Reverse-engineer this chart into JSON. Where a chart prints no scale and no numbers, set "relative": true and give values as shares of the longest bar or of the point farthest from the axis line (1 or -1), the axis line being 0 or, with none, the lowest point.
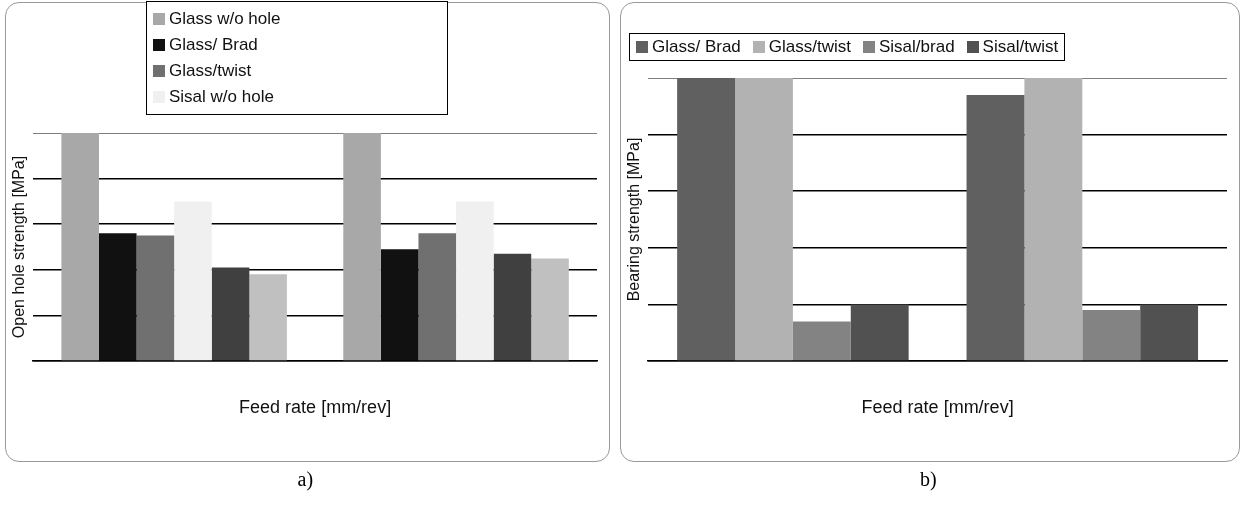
{
  "chart_data": [
    {
      "type": "bar",
      "relative": true,
      "categories": [
        null,
        null
      ],
      "ylabel": "Open hole strength [MPa]",
      "xlabel": "Feed rate [mm/rev]",
      "grid": "y",
      "legend": "top",
      "annotations": [
        "a)"
      ],
      "series": [
        {
          "name": "Glass w/o hole",
          "color": "#a8a8a8",
          "values": [
            1,
            1
          ]
        },
        {
          "name": "Glass/ Brad",
          "color": "#111111",
          "values": [
            0.56,
            0.49
          ]
        },
        {
          "name": "Glass/twist",
          "color": "#707070",
          "values": [
            0.55,
            0.56
          ]
        },
        {
          "name": "Sisal w/o hole",
          "color": "#f0f0f0",
          "values": [
            0.7,
            0.7
          ]
        },
        {
          "color": "#404040",
          "values": [
            0.41,
            0.47
          ]
        },
        {
          "color": "#c0c0c0",
          "values": [
            0.38,
            0.45
          ]
        }
      ]
    },
    {
      "type": "bar",
      "relative": true,
      "categories": [
        null,
        null
      ],
      "ylabel": "Bearing strength [MPa]",
      "xlabel": "Feed rate [mm/rev]",
      "grid": "y",
      "legend": "top",
      "annotations": [
        "b)"
      ],
      "series": [
        {
          "name": "Glass/ Brad",
          "color": "#606060",
          "values": [
            1,
            0.94
          ]
        },
        {
          "name": "Glass/twist",
          "color": "#b2b2b2",
          "values": [
            1,
            1
          ]
        },
        {
          "name": "Sisal/brad",
          "color": "#838383",
          "values": [
            0.14,
            0.18
          ]
        },
        {
          "name": "Sisal/twist",
          "color": "#515151",
          "values": [
            0.2,
            0.2
          ]
        }
      ]
    }
  ]
}
